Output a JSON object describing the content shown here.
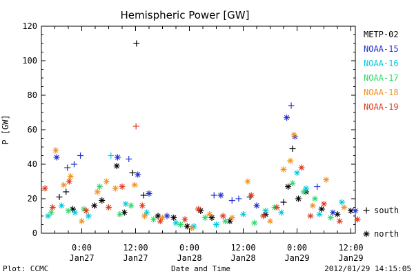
{
  "chart_data": {
    "type": "scatter",
    "title": "Hemispheric Power [GW]",
    "ylabel": "P [GW]",
    "xlabel": "Date and Time",
    "footer_left": "Plot: CCMC",
    "footer_right": "2012/01/29 14:15:05",
    "ylim": [
      0,
      120
    ],
    "xlim_hours": [
      -9,
      61
    ],
    "y_ticks": [
      0,
      20,
      40,
      60,
      80,
      100,
      120
    ],
    "x_ticks": [
      {
        "hour": 0,
        "time": "0:00",
        "date": "Jan27"
      },
      {
        "hour": 12,
        "time": "12:00",
        "date": "Jan27"
      },
      {
        "hour": 24,
        "time": "0:00",
        "date": "Jan28"
      },
      {
        "hour": 36,
        "time": "12:00",
        "date": "Jan28"
      },
      {
        "hour": 48,
        "time": "0:00",
        "date": "Jan29"
      },
      {
        "hour": 60,
        "time": "12:00",
        "date": "Jan29"
      }
    ],
    "x_unit_note": "hours relative to 2012-01-27 00:00 UT",
    "hemisphere_legend": [
      {
        "symbol": "+",
        "label": "south"
      },
      {
        "symbol": "*",
        "label": "north"
      }
    ],
    "series": [
      {
        "name": "METP-02",
        "color": "#000000",
        "points": [
          {
            "x": -5.0,
            "y": 21,
            "hemi": "south"
          },
          {
            "x": -3.5,
            "y": 24,
            "hemi": "south"
          },
          {
            "x": -2.0,
            "y": 14,
            "hemi": "north"
          },
          {
            "x": 2.8,
            "y": 16,
            "hemi": "north"
          },
          {
            "x": 4.5,
            "y": 19,
            "hemi": "north"
          },
          {
            "x": 7.8,
            "y": 39,
            "hemi": "north"
          },
          {
            "x": 9.5,
            "y": 12,
            "hemi": "north"
          },
          {
            "x": 11.3,
            "y": 35,
            "hemi": "south"
          },
          {
            "x": 12.2,
            "y": 110,
            "hemi": "south"
          },
          {
            "x": 13.8,
            "y": 22,
            "hemi": "south"
          },
          {
            "x": 17.0,
            "y": 10,
            "hemi": "north"
          },
          {
            "x": 20.5,
            "y": 9,
            "hemi": "north"
          },
          {
            "x": 23.5,
            "y": 4,
            "hemi": "north"
          },
          {
            "x": 26.5,
            "y": 13,
            "hemi": "north"
          },
          {
            "x": 29.0,
            "y": 9,
            "hemi": "north"
          },
          {
            "x": 33.0,
            "y": 7,
            "hemi": "north"
          },
          {
            "x": 37.5,
            "y": 21,
            "hemi": "south"
          },
          {
            "x": 41.0,
            "y": 11,
            "hemi": "north"
          },
          {
            "x": 45.0,
            "y": 18,
            "hemi": "south"
          },
          {
            "x": 46.0,
            "y": 27,
            "hemi": "north"
          },
          {
            "x": 47.0,
            "y": 49,
            "hemi": "south"
          },
          {
            "x": 48.3,
            "y": 20,
            "hemi": "north"
          },
          {
            "x": 50.0,
            "y": 24,
            "hemi": "north"
          },
          {
            "x": 53.5,
            "y": 14,
            "hemi": "north"
          },
          {
            "x": 57.0,
            "y": 11,
            "hemi": "north"
          },
          {
            "x": 60.0,
            "y": 13,
            "hemi": "north"
          }
        ]
      },
      {
        "name": "NOAA-15",
        "color": "#1f2fd0",
        "points": [
          {
            "x": -5.6,
            "y": 44,
            "hemi": "north"
          },
          {
            "x": -3.2,
            "y": 38,
            "hemi": "south"
          },
          {
            "x": -1.7,
            "y": 40,
            "hemi": "south"
          },
          {
            "x": -0.3,
            "y": 45,
            "hemi": "south"
          },
          {
            "x": 8.0,
            "y": 44,
            "hemi": "north"
          },
          {
            "x": 10.5,
            "y": 43,
            "hemi": "south"
          },
          {
            "x": 12.5,
            "y": 34,
            "hemi": "north"
          },
          {
            "x": 15.0,
            "y": 23,
            "hemi": "north"
          },
          {
            "x": 19.0,
            "y": 10,
            "hemi": "north"
          },
          {
            "x": 29.5,
            "y": 22,
            "hemi": "south"
          },
          {
            "x": 31.0,
            "y": 22,
            "hemi": "north"
          },
          {
            "x": 33.5,
            "y": 19,
            "hemi": "south"
          },
          {
            "x": 35.0,
            "y": 20,
            "hemi": "south"
          },
          {
            "x": 39.0,
            "y": 16,
            "hemi": "north"
          },
          {
            "x": 45.7,
            "y": 67,
            "hemi": "north"
          },
          {
            "x": 46.7,
            "y": 74,
            "hemi": "south"
          },
          {
            "x": 47.5,
            "y": 56,
            "hemi": "north"
          },
          {
            "x": 52.5,
            "y": 27,
            "hemi": "south"
          },
          {
            "x": 56.0,
            "y": 12,
            "hemi": "north"
          },
          {
            "x": 61.0,
            "y": 13,
            "hemi": "north"
          }
        ]
      },
      {
        "name": "NOAA-16",
        "color": "#00c8e0",
        "points": [
          {
            "x": -7.5,
            "y": 10,
            "hemi": "north"
          },
          {
            "x": -4.5,
            "y": 16,
            "hemi": "north"
          },
          {
            "x": -1.5,
            "y": 12,
            "hemi": "north"
          },
          {
            "x": 1.5,
            "y": 10,
            "hemi": "north"
          },
          {
            "x": 6.5,
            "y": 45,
            "hemi": "south"
          },
          {
            "x": 9.8,
            "y": 17,
            "hemi": "north"
          },
          {
            "x": 14.5,
            "y": 12,
            "hemi": "north"
          },
          {
            "x": 21.0,
            "y": 6,
            "hemi": "north"
          },
          {
            "x": 25.0,
            "y": 4,
            "hemi": "north"
          },
          {
            "x": 30.0,
            "y": 5,
            "hemi": "north"
          },
          {
            "x": 36.0,
            "y": 11,
            "hemi": "north"
          },
          {
            "x": 41.0,
            "y": 13,
            "hemi": "north"
          },
          {
            "x": 44.5,
            "y": 12,
            "hemi": "north"
          },
          {
            "x": 48.0,
            "y": 35,
            "hemi": "north"
          },
          {
            "x": 50.0,
            "y": 26,
            "hemi": "north"
          },
          {
            "x": 53.0,
            "y": 11,
            "hemi": "north"
          },
          {
            "x": 58.0,
            "y": 18,
            "hemi": "north"
          }
        ]
      },
      {
        "name": "NOAA-17",
        "color": "#2ed66a",
        "points": [
          {
            "x": -6.8,
            "y": 12,
            "hemi": "north"
          },
          {
            "x": -3.0,
            "y": 13,
            "hemi": "north"
          },
          {
            "x": 0.5,
            "y": 14,
            "hemi": "north"
          },
          {
            "x": 4.0,
            "y": 27,
            "hemi": "north"
          },
          {
            "x": 8.5,
            "y": 11,
            "hemi": "north"
          },
          {
            "x": 11.0,
            "y": 16,
            "hemi": "north"
          },
          {
            "x": 16.0,
            "y": 8,
            "hemi": "north"
          },
          {
            "x": 22.0,
            "y": 5,
            "hemi": "north"
          },
          {
            "x": 27.5,
            "y": 9,
            "hemi": "north"
          },
          {
            "x": 32.0,
            "y": 7,
            "hemi": "north"
          },
          {
            "x": 38.5,
            "y": 6,
            "hemi": "north"
          },
          {
            "x": 43.0,
            "y": 15,
            "hemi": "north"
          },
          {
            "x": 47.0,
            "y": 29,
            "hemi": "north"
          },
          {
            "x": 49.5,
            "y": 24,
            "hemi": "north"
          },
          {
            "x": 52.0,
            "y": 20,
            "hemi": "north"
          },
          {
            "x": 55.5,
            "y": 9,
            "hemi": "north"
          }
        ]
      },
      {
        "name": "NOAA-18",
        "color": "#f2901e",
        "points": [
          {
            "x": -5.8,
            "y": 48,
            "hemi": "north"
          },
          {
            "x": -4.0,
            "y": 28,
            "hemi": "north"
          },
          {
            "x": -2.5,
            "y": 33,
            "hemi": "north"
          },
          {
            "x": 0.0,
            "y": 7,
            "hemi": "north"
          },
          {
            "x": 3.5,
            "y": 24,
            "hemi": "north"
          },
          {
            "x": 5.5,
            "y": 30,
            "hemi": "north"
          },
          {
            "x": 7.5,
            "y": 26,
            "hemi": "north"
          },
          {
            "x": 11.8,
            "y": 28,
            "hemi": "north"
          },
          {
            "x": 14.0,
            "y": 10,
            "hemi": "north"
          },
          {
            "x": 18.0,
            "y": 9,
            "hemi": "north"
          },
          {
            "x": 24.5,
            "y": 3,
            "hemi": "north"
          },
          {
            "x": 28.5,
            "y": 11,
            "hemi": "north"
          },
          {
            "x": 33.5,
            "y": 9,
            "hemi": "north"
          },
          {
            "x": 37.0,
            "y": 30,
            "hemi": "north"
          },
          {
            "x": 42.0,
            "y": 7,
            "hemi": "north"
          },
          {
            "x": 45.0,
            "y": 37,
            "hemi": "north"
          },
          {
            "x": 46.5,
            "y": 42,
            "hemi": "north"
          },
          {
            "x": 47.3,
            "y": 57,
            "hemi": "north"
          },
          {
            "x": 51.5,
            "y": 16,
            "hemi": "north"
          },
          {
            "x": 54.5,
            "y": 31,
            "hemi": "north"
          },
          {
            "x": 58.5,
            "y": 15,
            "hemi": "north"
          }
        ]
      },
      {
        "name": "NOAA-19",
        "color": "#e03a1c",
        "points": [
          {
            "x": -8.2,
            "y": 26,
            "hemi": "north"
          },
          {
            "x": -6.5,
            "y": 15,
            "hemi": "north"
          },
          {
            "x": -2.8,
            "y": 30,
            "hemi": "north"
          },
          {
            "x": 1.0,
            "y": 13,
            "hemi": "north"
          },
          {
            "x": 6.0,
            "y": 15,
            "hemi": "north"
          },
          {
            "x": 9.0,
            "y": 27,
            "hemi": "north"
          },
          {
            "x": 12.1,
            "y": 62,
            "hemi": "south"
          },
          {
            "x": 13.5,
            "y": 16,
            "hemi": "north"
          },
          {
            "x": 17.5,
            "y": 7,
            "hemi": "north"
          },
          {
            "x": 23.0,
            "y": 8,
            "hemi": "north"
          },
          {
            "x": 26.0,
            "y": 14,
            "hemi": "north"
          },
          {
            "x": 31.5,
            "y": 10,
            "hemi": "north"
          },
          {
            "x": 37.8,
            "y": 22,
            "hemi": "north"
          },
          {
            "x": 40.5,
            "y": 10,
            "hemi": "north"
          },
          {
            "x": 43.5,
            "y": 15,
            "hemi": "north"
          },
          {
            "x": 49.0,
            "y": 38,
            "hemi": "north"
          },
          {
            "x": 51.0,
            "y": 10,
            "hemi": "north"
          },
          {
            "x": 54.0,
            "y": 17,
            "hemi": "north"
          },
          {
            "x": 57.5,
            "y": 7,
            "hemi": "north"
          },
          {
            "x": 61.5,
            "y": 8,
            "hemi": "north"
          }
        ]
      }
    ]
  }
}
